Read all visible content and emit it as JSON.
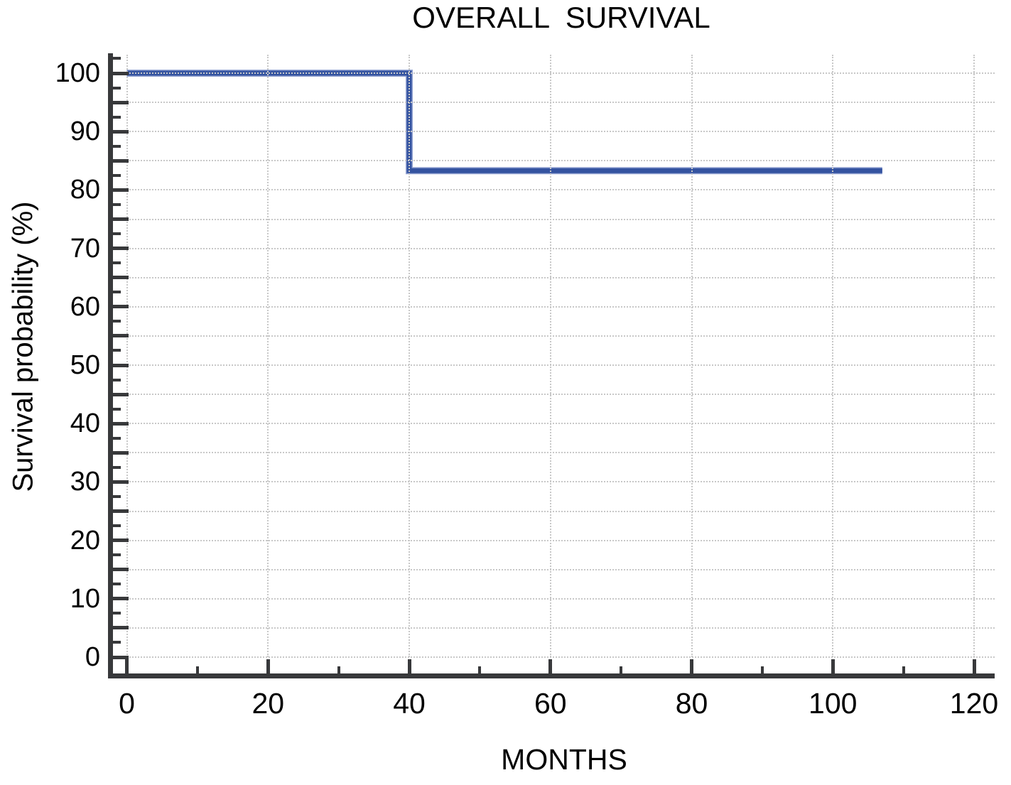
{
  "chart_data": {
    "type": "line",
    "subtype": "kaplan-meier-step",
    "title": "OVERALL  SURVIVAL",
    "xlabel": "MONTHS",
    "ylabel": "Survival probability (%)",
    "xlim": [
      0,
      120
    ],
    "ylim": [
      0,
      100
    ],
    "x_tick_labels": [
      0,
      20,
      40,
      60,
      80,
      100,
      120
    ],
    "x_minor_ticks": [
      10,
      30,
      50,
      70,
      90,
      110
    ],
    "y_tick_labels": [
      0,
      10,
      20,
      30,
      40,
      50,
      60,
      70,
      80,
      90,
      100
    ],
    "y_minor_tick_step": 2.5,
    "grid": {
      "horizontal_step_pct": 5,
      "vertical_step_months": 20,
      "style": "dotted",
      "color": "#c8c8c8"
    },
    "legend_position": "none",
    "series": [
      {
        "name": "Overall survival",
        "color": "#3453a0",
        "halo_color": "#93a3d2",
        "points": [
          [
            0,
            100
          ],
          [
            40,
            100
          ],
          [
            40,
            83.3
          ],
          [
            107,
            83.3
          ]
        ]
      }
    ],
    "colors": {
      "axis": "#38393b",
      "text": "#000000",
      "background": "#ffffff"
    }
  }
}
